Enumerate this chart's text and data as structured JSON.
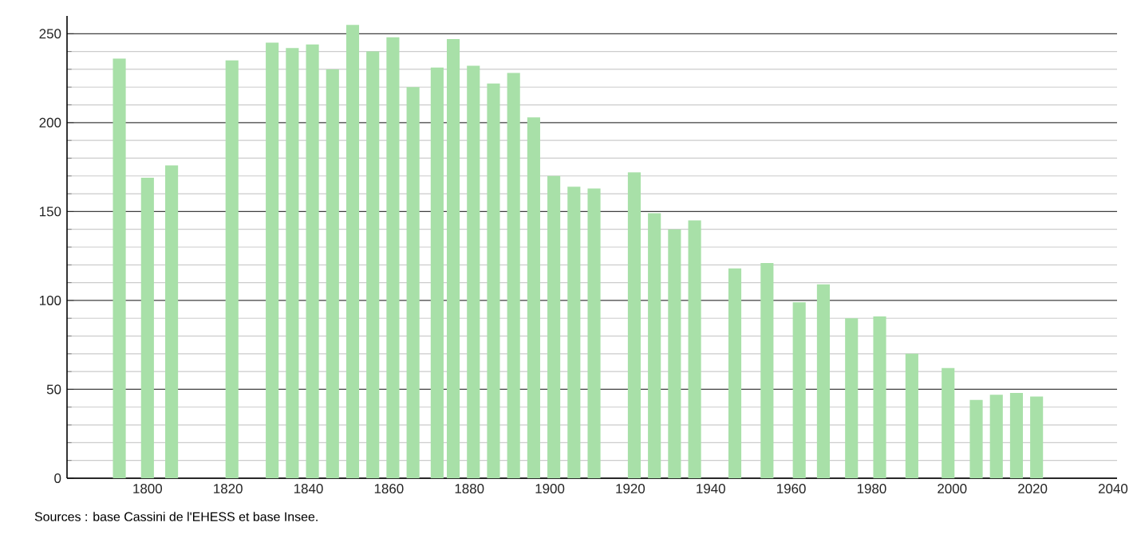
{
  "chart_data": {
    "type": "bar",
    "color": "#a8e0a8",
    "x": [
      1793,
      1800,
      1806,
      1821,
      1831,
      1836,
      1841,
      1846,
      1851,
      1856,
      1861,
      1866,
      1872,
      1876,
      1881,
      1886,
      1891,
      1896,
      1901,
      1906,
      1911,
      1921,
      1926,
      1931,
      1936,
      1946,
      1954,
      1962,
      1968,
      1975,
      1982,
      1990,
      1999,
      2006,
      2011,
      2016,
      2021
    ],
    "values": [
      236,
      169,
      176,
      235,
      245,
      242,
      244,
      230,
      255,
      240,
      248,
      220,
      231,
      247,
      232,
      222,
      228,
      203,
      170,
      164,
      163,
      172,
      149,
      140,
      145,
      118,
      121,
      99,
      109,
      90,
      91,
      70,
      62,
      44,
      47,
      48,
      46
    ],
    "xlim": [
      1780,
      2041
    ],
    "ylim": [
      0,
      260
    ],
    "xticks": [
      1800,
      1820,
      1840,
      1860,
      1880,
      1900,
      1920,
      1940,
      1960,
      1980,
      2000,
      2020,
      2040
    ],
    "yticks": [
      0,
      50,
      100,
      150,
      200,
      250
    ],
    "grid": "y",
    "annotations": [
      "Sources : base Cassini de l'EHESS et base Insee."
    ]
  }
}
